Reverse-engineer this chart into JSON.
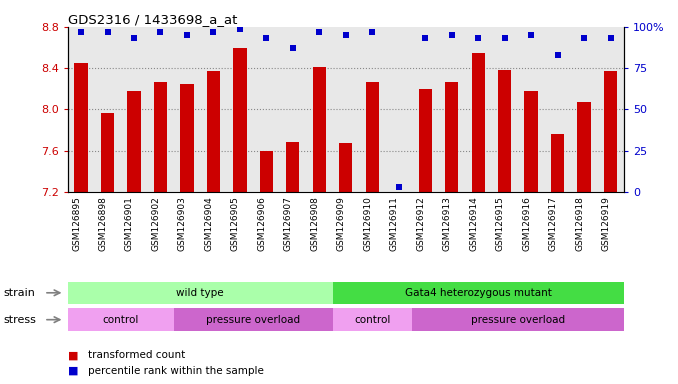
{
  "title": "GDS2316 / 1433698_a_at",
  "samples": [
    "GSM126895",
    "GSM126898",
    "GSM126901",
    "GSM126902",
    "GSM126903",
    "GSM126904",
    "GSM126905",
    "GSM126906",
    "GSM126907",
    "GSM126908",
    "GSM126909",
    "GSM126910",
    "GSM126911",
    "GSM126912",
    "GSM126913",
    "GSM126914",
    "GSM126915",
    "GSM126916",
    "GSM126917",
    "GSM126918",
    "GSM126919"
  ],
  "transformed_counts": [
    8.45,
    7.97,
    8.18,
    8.27,
    8.25,
    8.37,
    8.6,
    7.6,
    7.68,
    8.41,
    7.67,
    8.27,
    7.2,
    8.2,
    8.27,
    8.55,
    8.38,
    8.18,
    7.76,
    8.07,
    8.37
  ],
  "percentile_ranks": [
    97,
    97,
    93,
    97,
    95,
    97,
    99,
    93,
    87,
    97,
    95,
    97,
    3,
    93,
    95,
    93,
    93,
    95,
    83,
    93,
    93
  ],
  "ylim_left": [
    7.2,
    8.8
  ],
  "ylim_right": [
    0,
    100
  ],
  "yticks_left": [
    7.2,
    7.6,
    8.0,
    8.4,
    8.8
  ],
  "yticks_right": [
    0,
    25,
    50,
    75,
    100
  ],
  "bar_color": "#cc0000",
  "dot_color": "#0000cc",
  "grid_color": "#808080",
  "bg_color": "#e8e8e8",
  "strain_groups": [
    {
      "label": "wild type",
      "start": 0,
      "end": 10,
      "color": "#aaffaa"
    },
    {
      "label": "Gata4 heterozygous mutant",
      "start": 10,
      "end": 21,
      "color": "#44dd44"
    }
  ],
  "stress_groups": [
    {
      "label": "control",
      "start": 0,
      "end": 4,
      "color": "#f0a0f0"
    },
    {
      "label": "pressure overload",
      "start": 4,
      "end": 10,
      "color": "#cc66cc"
    },
    {
      "label": "control",
      "start": 10,
      "end": 13,
      "color": "#f0a0f0"
    },
    {
      "label": "pressure overload",
      "start": 13,
      "end": 21,
      "color": "#cc66cc"
    }
  ],
  "legend_items": [
    {
      "label": "transformed count",
      "color": "#cc0000"
    },
    {
      "label": "percentile rank within the sample",
      "color": "#0000cc"
    }
  ]
}
